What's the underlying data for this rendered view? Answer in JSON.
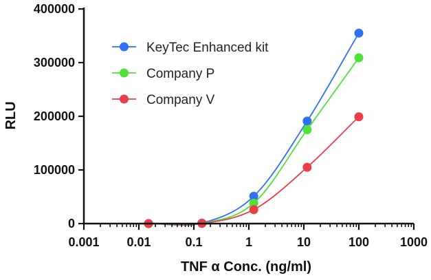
{
  "chart_data": {
    "type": "scatter",
    "xlabel": "TNF α Conc. (ng/ml)",
    "ylabel": "RLU",
    "x_scale": "log",
    "xlim": [
      0.001,
      1000
    ],
    "ylim": [
      0,
      400000
    ],
    "x_ticks": [
      "0.001",
      "0.01",
      "0.1",
      "1",
      "10",
      "100",
      "1000"
    ],
    "y_ticks": [
      "0",
      "100000",
      "200000",
      "300000",
      "400000"
    ],
    "grid": false,
    "legend_position": "top-left",
    "series": [
      {
        "name": "KeyTec Enhanced kit",
        "color": "#2f6ff2",
        "x": [
          0.015,
          0.14,
          1.23,
          11.5,
          100
        ],
        "y": [
          0,
          1000,
          51000,
          191000,
          355000
        ]
      },
      {
        "name": "Company P",
        "color": "#4fe03a",
        "x": [
          0.015,
          0.14,
          1.23,
          11.5,
          100
        ],
        "y": [
          0,
          500,
          38000,
          175000,
          309000
        ]
      },
      {
        "name": "Company V",
        "color": "#ec3c48",
        "x": [
          0.015,
          0.14,
          1.23,
          11.5,
          100
        ],
        "y": [
          0,
          300,
          26000,
          105000,
          199000
        ]
      }
    ]
  }
}
